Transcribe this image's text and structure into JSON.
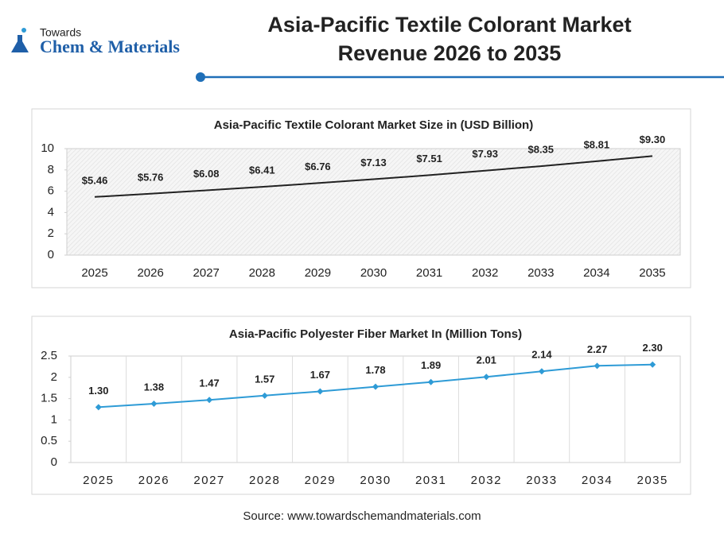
{
  "logo": {
    "top": "Towards",
    "name": "Chem & Materials"
  },
  "header": {
    "title": [
      "Asia-Pacific Textile Colorant Market",
      "Revenue 2026 to 2035"
    ]
  },
  "source": "Source: www.towardschemandmaterials.com",
  "chart_data": [
    {
      "type": "line",
      "title": "Asia-Pacific Textile Colorant Market Size in (USD Billion)",
      "categories": [
        "2025",
        "2026",
        "2027",
        "2028",
        "2029",
        "2030",
        "2031",
        "2032",
        "2033",
        "2034",
        "2035"
      ],
      "values": [
        5.46,
        5.76,
        6.08,
        6.41,
        6.76,
        7.13,
        7.51,
        7.93,
        8.35,
        8.81,
        9.3
      ],
      "value_labels": [
        "$5.46",
        "$5.76",
        "$6.08",
        "$6.41",
        "$6.76",
        "$7.13",
        "$7.51",
        "$7.93",
        "$8.35",
        "$8.81",
        "$9.30"
      ],
      "color": "#222222",
      "marker": "none",
      "background": "hatch",
      "vertical_grid": false,
      "ylim": [
        0,
        10
      ],
      "yticks": [
        0,
        2,
        4,
        6,
        8,
        10
      ]
    },
    {
      "type": "line",
      "title": "Asia-Pacific Polyester Fiber Market In (Million Tons)",
      "categories": [
        "2025",
        "2026",
        "2027",
        "2028",
        "2029",
        "2030",
        "2031",
        "2032",
        "2033",
        "2034",
        "2035"
      ],
      "values": [
        1.3,
        1.38,
        1.47,
        1.57,
        1.67,
        1.78,
        1.89,
        2.01,
        2.14,
        2.27,
        2.3
      ],
      "value_labels": [
        "1.30",
        "1.38",
        "1.47",
        "1.57",
        "1.67",
        "1.78",
        "1.89",
        "2.01",
        "2.14",
        "2.27",
        "2.30"
      ],
      "color": "#2e9bd6",
      "marker": "diamond",
      "background": "plain",
      "vertical_grid": true,
      "ylim": [
        0,
        2.5
      ],
      "yticks": [
        0,
        0.5,
        1,
        1.5,
        2,
        2.5
      ]
    }
  ]
}
